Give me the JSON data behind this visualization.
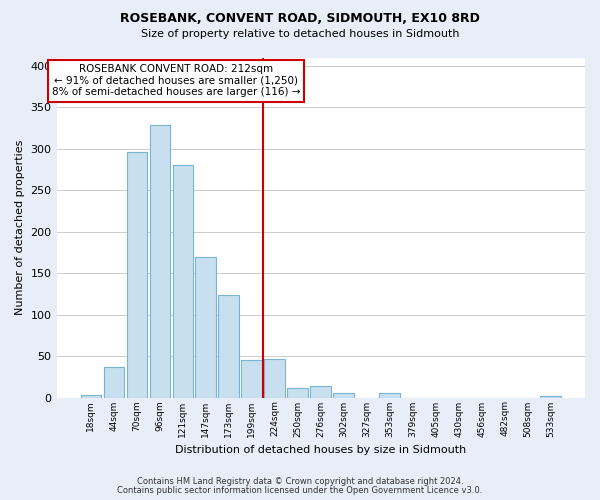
{
  "title": "ROSEBANK, CONVENT ROAD, SIDMOUTH, EX10 8RD",
  "subtitle": "Size of property relative to detached houses in Sidmouth",
  "xlabel": "Distribution of detached houses by size in Sidmouth",
  "ylabel": "Number of detached properties",
  "bar_labels": [
    "18sqm",
    "44sqm",
    "70sqm",
    "96sqm",
    "121sqm",
    "147sqm",
    "173sqm",
    "199sqm",
    "224sqm",
    "250sqm",
    "276sqm",
    "302sqm",
    "327sqm",
    "353sqm",
    "379sqm",
    "405sqm",
    "430sqm",
    "456sqm",
    "482sqm",
    "508sqm",
    "533sqm"
  ],
  "bar_values": [
    3,
    37,
    296,
    329,
    280,
    170,
    124,
    45,
    46,
    12,
    14,
    5,
    0,
    5,
    0,
    0,
    0,
    0,
    0,
    0,
    2
  ],
  "bar_color": "#c8dff0",
  "bar_edge_color": "#7ab4d4",
  "vline_x_index": 7.5,
  "vline_color": "#cc0000",
  "annotation_text": "ROSEBANK CONVENT ROAD: 212sqm\n← 91% of detached houses are smaller (1,250)\n8% of semi-detached houses are larger (116) →",
  "annotation_box_facecolor": "#ffffff",
  "annotation_box_edgecolor": "#cc0000",
  "ylim": [
    0,
    410
  ],
  "yticks": [
    0,
    50,
    100,
    150,
    200,
    250,
    300,
    350,
    400
  ],
  "footnote1": "Contains HM Land Registry data © Crown copyright and database right 2024.",
  "footnote2": "Contains public sector information licensed under the Open Government Licence v3.0.",
  "bg_color": "#e8eef8",
  "plot_bg_color": "#ffffff",
  "grid_color": "#cccccc",
  "title_fontsize": 9,
  "subtitle_fontsize": 8,
  "ylabel_fontsize": 8,
  "xlabel_fontsize": 8,
  "annotation_fontsize": 7.5
}
